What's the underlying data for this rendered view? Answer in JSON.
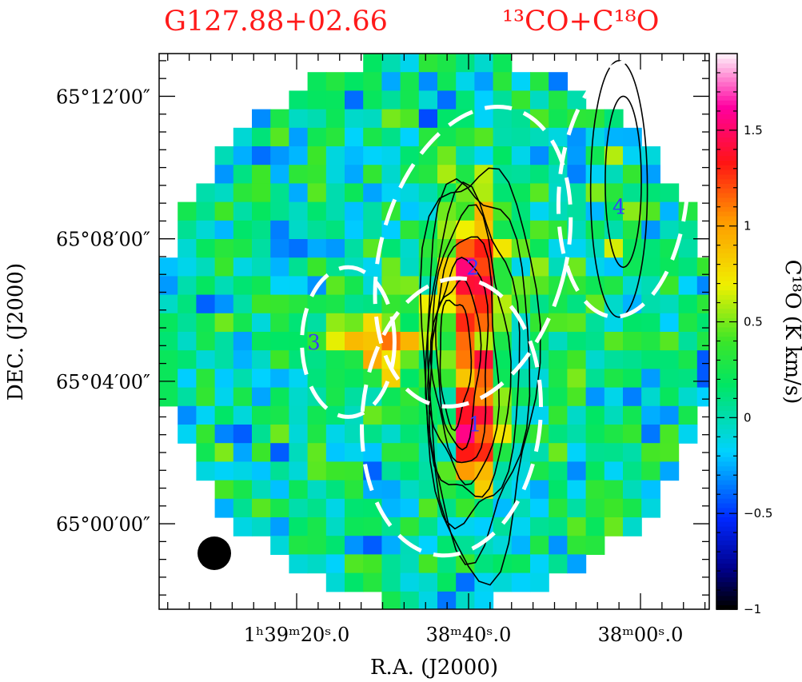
{
  "titles": {
    "source": "G127.88+02.66",
    "lines": "¹³CO+C¹⁸O"
  },
  "chart_data": {
    "type": "heatmap",
    "xlabel": "R.A. (J2000)",
    "ylabel": "DEC. (J2000)",
    "x_ticks": [
      {
        "value": 80,
        "label": "1ʰ39ᵐ20ˢ.0"
      },
      {
        "value": 40,
        "label": "38ᵐ40ˢ.0"
      },
      {
        "value": 0,
        "label": "38ᵐ00ˢ.0"
      }
    ],
    "y_ticks": [
      {
        "value": 12,
        "label": "65°12′00″"
      },
      {
        "value": 8,
        "label": "65°08′00″"
      },
      {
        "value": 4,
        "label": "65°04′00″"
      },
      {
        "value": 0,
        "label": "65°00′00″"
      }
    ],
    "xlim_s": [
      112,
      -16
    ],
    "ylim_arcmin": [
      -2.4,
      13.2
    ],
    "colorbar": {
      "title": "C¹⁸O (K km/s)",
      "range": [
        -1.0,
        1.9
      ],
      "ticks": [
        {
          "value": 1.5,
          "label": "1.5"
        },
        {
          "value": 1,
          "label": "1"
        },
        {
          "value": 0.5,
          "label": "0.5"
        },
        {
          "value": 0,
          "label": "0"
        },
        {
          "value": -0.5,
          "label": "−0.5"
        },
        {
          "value": -1,
          "label": "−1"
        }
      ]
    },
    "peak_intensity_K_km_s": 1.9,
    "contour_levels_relative": [
      0.2,
      0.3,
      0.4,
      0.5,
      0.6,
      0.7,
      0.8,
      0.9
    ],
    "grid": false,
    "beam": {
      "shape": "circle",
      "location": "bottom-left"
    },
    "clumps": [
      {
        "id": "1",
        "ra_s": 38.5,
        "dec_arcmin": 2.8
      },
      {
        "id": "2",
        "ra_s": 39.0,
        "dec_arcmin": 7.2
      },
      {
        "id": "3",
        "ra_s": 76.0,
        "dec_arcmin": 5.1
      },
      {
        "id": "4",
        "ra_s": 5.0,
        "dec_arcmin": 8.9
      }
    ],
    "ellipses": [
      {
        "ra_s": 39,
        "dec_arcmin": 7.5,
        "a_arcmin": 4.3,
        "b_arcmin": 2.6,
        "pa_deg": 75
      },
      {
        "ra_s": 44,
        "dec_arcmin": 3.0,
        "a_arcmin": 3.9,
        "b_arcmin": 2.5,
        "pa_deg": 85
      },
      {
        "ra_s": 68,
        "dec_arcmin": 5.1,
        "a_arcmin": 2.1,
        "b_arcmin": 1.3,
        "pa_deg": 90
      },
      {
        "ra_s": 4,
        "dec_arcmin": 9.4,
        "a_arcmin": 3.6,
        "b_arcmin": 1.8,
        "pa_deg": 85
      }
    ]
  },
  "colors": {
    "title": "#ff1a1a",
    "clump_label": "#3a3aff",
    "contour": "#000000",
    "ellipse": "#ffffff",
    "beam": "#000000"
  }
}
